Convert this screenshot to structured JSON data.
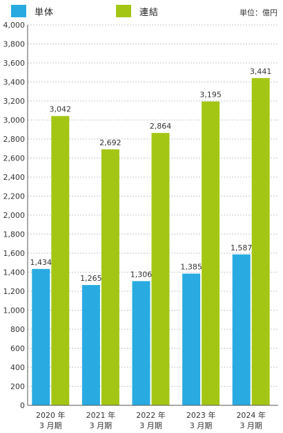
{
  "legend": {
    "series1": "単体",
    "series2": "連結"
  },
  "unit_label": "単位：億円",
  "colors": {
    "series1": "#29abe2",
    "series2": "#a3c615",
    "grid": "#b5b5b5",
    "axis": "#555555",
    "text": "#333333"
  },
  "chart_data": {
    "type": "bar",
    "categories": [
      [
        "2020 年",
        "3 月期"
      ],
      [
        "2021 年",
        "3 月期"
      ],
      [
        "2022 年",
        "3 月期"
      ],
      [
        "2023 年",
        "3 月期"
      ],
      [
        "2024 年",
        "3 月期"
      ]
    ],
    "series": [
      {
        "name": "単体",
        "values": [
          1434,
          1265,
          1306,
          1385,
          1587
        ],
        "labels": [
          "1,434",
          "1,265",
          "1,306",
          "1,385",
          "1,587"
        ]
      },
      {
        "name": "連結",
        "values": [
          3042,
          2692,
          2864,
          3195,
          3441
        ],
        "labels": [
          "3,042",
          "2,692",
          "2,864",
          "3,195",
          "3,441"
        ]
      }
    ],
    "ylim": [
      0,
      4000
    ],
    "yticks": [
      "0",
      "200",
      "400",
      "600",
      "800",
      "1,000",
      "1,200",
      "1,400",
      "1,600",
      "1,800",
      "2,000",
      "2,200",
      "2,400",
      "2,600",
      "2,800",
      "3,000",
      "3,200",
      "3,400",
      "3,600",
      "3,800",
      "4,000"
    ],
    "grid": true,
    "legend_position": "top-left"
  }
}
